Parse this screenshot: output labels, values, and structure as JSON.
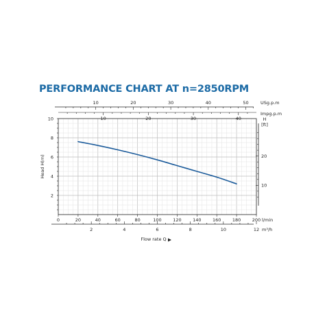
{
  "title": "PERFORMANCE CHART AT n=2850RPM",
  "colors": {
    "title": "#1b6aa5",
    "curve": "#1a5a9a",
    "axis": "#222222",
    "grid_major": "#bdbdbd",
    "grid_minor": "#e3e3e3"
  },
  "chart_data": {
    "type": "line",
    "title": "PERFORMANCE CHART AT n=2850RPM",
    "xlabel": "Flow rate Q",
    "ylabel": "Head H(m)",
    "grid": true,
    "xlim": [
      0,
      200
    ],
    "ylim": [
      0,
      10
    ],
    "series": [
      {
        "x": [
          20,
          40,
          60,
          80,
          100,
          120,
          140,
          160,
          180
        ],
        "y": [
          7.6,
          7.2,
          6.75,
          6.25,
          5.7,
          5.1,
          4.5,
          3.9,
          3.2
        ]
      }
    ],
    "axes": {
      "x_bottom_lmin": {
        "unit": "l/min",
        "ticks": [
          0,
          20,
          40,
          60,
          80,
          100,
          120,
          140,
          160,
          180,
          200
        ]
      },
      "x_bottom_m3h": {
        "unit": "m³/h",
        "ticks": [
          2,
          4,
          6,
          8,
          10,
          12
        ]
      },
      "x_top_usgpm": {
        "unit": "USg.p.m",
        "ticks": [
          10,
          20,
          30,
          40,
          50
        ]
      },
      "x_top_impgpm": {
        "unit": "Impg.p.m",
        "ticks": [
          10,
          20,
          30,
          40
        ]
      },
      "y_left_m": {
        "ticks": [
          2,
          4,
          6,
          8,
          10
        ]
      },
      "y_right_ft": {
        "unit_line1": "H",
        "unit_line2": "[ft]",
        "ticks": [
          10,
          20
        ]
      }
    }
  }
}
